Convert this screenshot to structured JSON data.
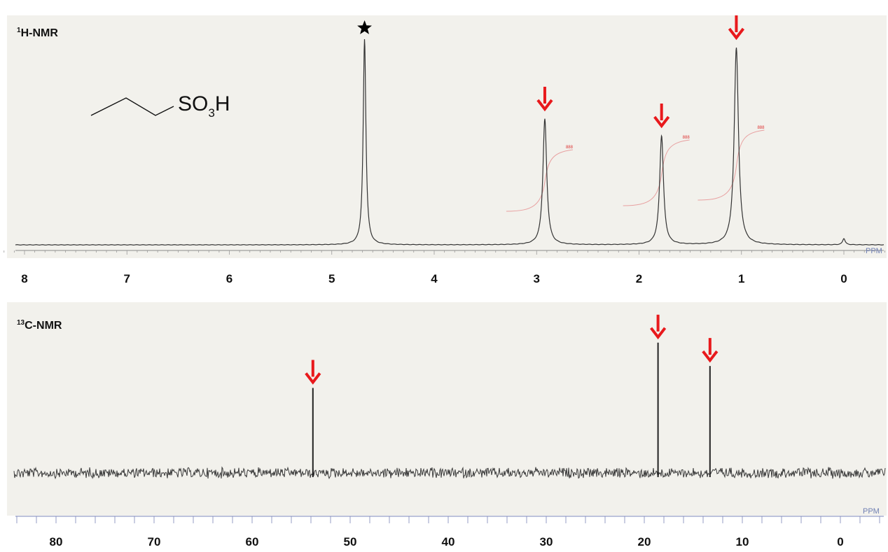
{
  "colors": {
    "panel_background": "#f2f1ec",
    "spectrum_line": "#333333",
    "noise_line": "#3a3a3a",
    "integral_curve": "#e8a0a0",
    "arrow": "#e8191c",
    "unit_text": "#6f7fb3"
  },
  "chart_data": [
    {
      "type": "line",
      "panel_label": {
        "sup": "1",
        "main": "H-NMR"
      },
      "xlim": [
        8.25,
        -0.5
      ],
      "x_reversed": true,
      "xticks": [
        8,
        7,
        6,
        5,
        4,
        3,
        2,
        1,
        0
      ],
      "xtick_labels": [
        "8",
        "7",
        "6",
        "5",
        "4",
        "3",
        "2",
        "1",
        "0"
      ],
      "unit_label": "PPM",
      "grid": false,
      "molecule": {
        "main": "SO",
        "sub": "3",
        "tail": "H",
        "icon": "propyl-chain-icon"
      },
      "peaks": [
        {
          "ppm": 4.68,
          "height": 0.98,
          "width": 0.032,
          "marker": "star",
          "marker_icon": "star-icon",
          "integral_label": ""
        },
        {
          "ppm": 2.92,
          "height": 0.6,
          "width": 0.045,
          "marker": "arrow",
          "marker_icon": "arrow-down-icon",
          "integral_label": "888"
        },
        {
          "ppm": 1.78,
          "height": 0.52,
          "width": 0.045,
          "marker": "arrow",
          "marker_icon": "arrow-down-icon",
          "integral_label": "888"
        },
        {
          "ppm": 1.05,
          "height": 0.94,
          "width": 0.05,
          "marker": "arrow",
          "marker_icon": "arrow-down-icon",
          "integral_label": "888"
        },
        {
          "ppm": 0.0,
          "height": 0.03,
          "width": 0.03,
          "marker": "none",
          "marker_icon": "",
          "integral_label": ""
        }
      ]
    },
    {
      "type": "line",
      "panel_label": {
        "sup": "13",
        "main": "C-NMR"
      },
      "xlim": [
        85,
        -5
      ],
      "x_reversed": true,
      "xticks": [
        80,
        70,
        60,
        50,
        40,
        30,
        20,
        10,
        0
      ],
      "xtick_labels": [
        "80",
        "70",
        "60",
        "50",
        "40",
        "30",
        "20",
        "10",
        "0"
      ],
      "unit_label": "PPM",
      "grid": false,
      "peaks": [
        {
          "ppm": 53.8,
          "height": 0.62,
          "marker": "arrow",
          "marker_icon": "arrow-down-icon"
        },
        {
          "ppm": 18.6,
          "height": 0.95,
          "marker": "arrow",
          "marker_icon": "arrow-down-icon"
        },
        {
          "ppm": 13.3,
          "height": 0.78,
          "marker": "arrow",
          "marker_icon": "arrow-down-icon"
        }
      ]
    }
  ]
}
